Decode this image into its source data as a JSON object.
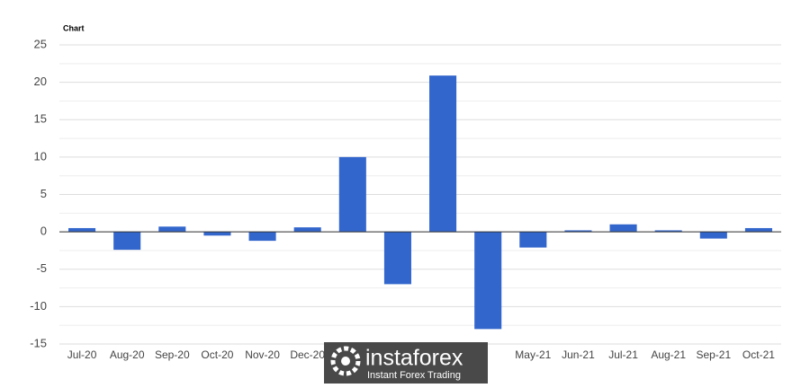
{
  "chart_data": {
    "type": "bar",
    "title": "Chart",
    "categories": [
      "Jul-20",
      "Aug-20",
      "Sep-20",
      "Oct-20",
      "Nov-20",
      "Dec-20",
      null,
      null,
      null,
      null,
      "May-21",
      "Jun-21",
      "Jul-21",
      "Aug-21",
      "Sep-21",
      "Oct-21"
    ],
    "values": [
      0.5,
      -2.4,
      0.7,
      -0.5,
      -1.2,
      0.6,
      10.0,
      -7.0,
      20.9,
      -13.0,
      -2.1,
      0.2,
      1.0,
      0.2,
      -0.9,
      0.5
    ],
    "color": "#3366cc",
    "ylim": [
      -15,
      25
    ],
    "yticks": [
      -15,
      -10,
      -5,
      0,
      5,
      10,
      15,
      20,
      25
    ],
    "grid": true
  },
  "watermark": {
    "brand": "instaforex",
    "tagline": "Instant Forex Trading"
  }
}
